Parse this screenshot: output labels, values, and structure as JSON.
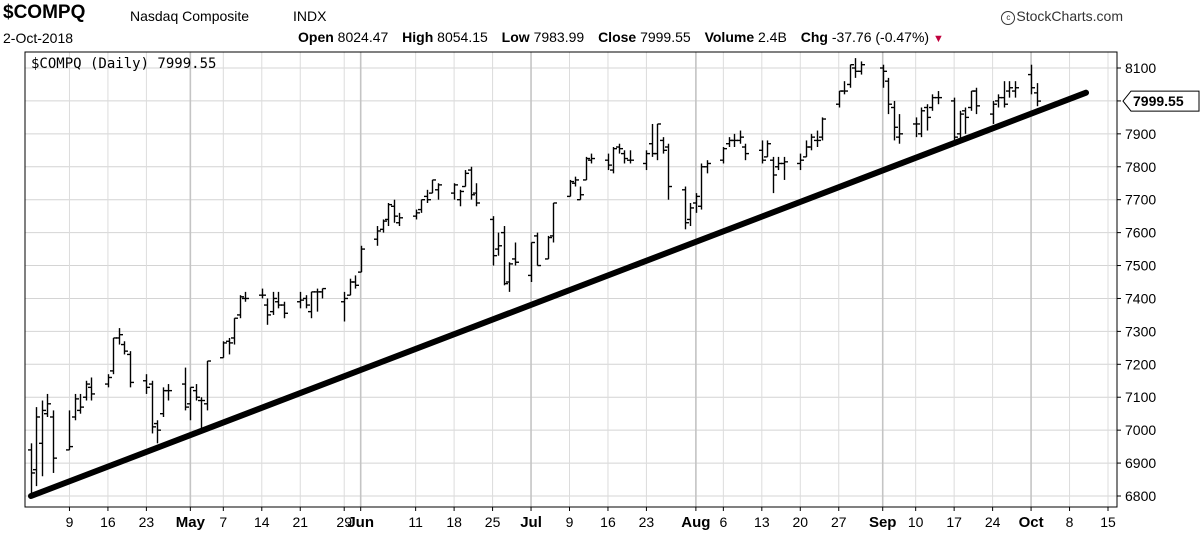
{
  "header": {
    "symbol": "$COMPQ",
    "name": "Nasdaq Composite",
    "exchange": "INDX",
    "brand": "StockCharts.com",
    "date": "2-Oct-2018",
    "open_label": "Open",
    "open": "8024.47",
    "high_label": "High",
    "high": "8054.15",
    "low_label": "Low",
    "low": "7983.99",
    "close_label": "Close",
    "close": "7999.55",
    "volume_label": "Volume",
    "volume": "2.4B",
    "chg_label": "Chg",
    "chg": "-37.76 (-0.47%)"
  },
  "chart_data": {
    "type": "ohlc",
    "legend": "$COMPQ (Daily) 7999.55",
    "last_value": "7999.55",
    "ylim": [
      6760,
      8160
    ],
    "y_ticks": [
      6800,
      6900,
      7000,
      7100,
      7200,
      7300,
      7400,
      7500,
      7600,
      7700,
      7800,
      7900,
      8000,
      8100
    ],
    "y_tick_labels": [
      "6800",
      "6900",
      "7000",
      "7100",
      "7200",
      "7300",
      "7400",
      "7500",
      "7600",
      "7700",
      "7800",
      "7900",
      "",
      "8100"
    ],
    "grid": true,
    "x_ticks": [
      {
        "label": "9",
        "month": false,
        "date": "2018-04-09"
      },
      {
        "label": "16",
        "month": false,
        "date": "2018-04-16"
      },
      {
        "label": "23",
        "month": false,
        "date": "2018-04-23"
      },
      {
        "label": "May",
        "month": true,
        "date": "2018-05-01"
      },
      {
        "label": "7",
        "month": false,
        "date": "2018-05-07"
      },
      {
        "label": "14",
        "month": false,
        "date": "2018-05-14"
      },
      {
        "label": "21",
        "month": false,
        "date": "2018-05-21"
      },
      {
        "label": "29",
        "month": false,
        "date": "2018-05-29"
      },
      {
        "label": "Jun",
        "month": true,
        "date": "2018-06-01"
      },
      {
        "label": "11",
        "month": false,
        "date": "2018-06-11"
      },
      {
        "label": "18",
        "month": false,
        "date": "2018-06-18"
      },
      {
        "label": "25",
        "month": false,
        "date": "2018-06-25"
      },
      {
        "label": "Jul",
        "month": true,
        "date": "2018-07-02"
      },
      {
        "label": "9",
        "month": false,
        "date": "2018-07-09"
      },
      {
        "label": "16",
        "month": false,
        "date": "2018-07-16"
      },
      {
        "label": "23",
        "month": false,
        "date": "2018-07-23"
      },
      {
        "label": "Aug",
        "month": true,
        "date": "2018-08-01"
      },
      {
        "label": "6",
        "month": false,
        "date": "2018-08-06"
      },
      {
        "label": "13",
        "month": false,
        "date": "2018-08-13"
      },
      {
        "label": "20",
        "month": false,
        "date": "2018-08-20"
      },
      {
        "label": "27",
        "month": false,
        "date": "2018-08-27"
      },
      {
        "label": "Sep",
        "month": true,
        "date": "2018-09-04"
      },
      {
        "label": "10",
        "month": false,
        "date": "2018-09-10"
      },
      {
        "label": "17",
        "month": false,
        "date": "2018-09-17"
      },
      {
        "label": "24",
        "month": false,
        "date": "2018-09-24"
      },
      {
        "label": "Oct",
        "month": true,
        "date": "2018-10-01"
      },
      {
        "label": "8",
        "month": false,
        "date": "2018-10-08"
      },
      {
        "label": "15",
        "month": false,
        "date": "2018-10-15"
      }
    ],
    "trendline": [
      {
        "date": "2018-04-02",
        "value": 6800
      },
      {
        "date": "2018-10-11",
        "value": 8025
      }
    ],
    "colors": {
      "bars": "#000000",
      "trendline": "#000000",
      "grid": "#d4d4d4",
      "change_arrow": "#c0003c"
    },
    "bars": [
      {
        "date": "2018-04-02",
        "o": 6940,
        "h": 6960,
        "l": 6800,
        "c": 6870
      },
      {
        "date": "2018-04-03",
        "o": 6880,
        "h": 7070,
        "l": 6830,
        "c": 7040
      },
      {
        "date": "2018-04-04",
        "o": 6960,
        "h": 7090,
        "l": 6860,
        "c": 7060
      },
      {
        "date": "2018-04-05",
        "o": 7050,
        "h": 7110,
        "l": 7040,
        "c": 7080
      },
      {
        "date": "2018-04-06",
        "o": 7040,
        "h": 7060,
        "l": 6870,
        "c": 6915
      },
      {
        "date": "2018-04-09",
        "o": 6940,
        "h": 7060,
        "l": 6940,
        "c": 6950
      },
      {
        "date": "2018-04-10",
        "o": 7040,
        "h": 7110,
        "l": 7030,
        "c": 7095
      },
      {
        "date": "2018-04-11",
        "o": 7060,
        "h": 7110,
        "l": 7050,
        "c": 7070
      },
      {
        "date": "2018-04-12",
        "o": 7100,
        "h": 7150,
        "l": 7090,
        "c": 7140
      },
      {
        "date": "2018-04-13",
        "o": 7130,
        "h": 7160,
        "l": 7090,
        "c": 7110
      },
      {
        "date": "2018-04-16",
        "o": 7140,
        "h": 7170,
        "l": 7130,
        "c": 7160
      },
      {
        "date": "2018-04-17",
        "o": 7180,
        "h": 7280,
        "l": 7170,
        "c": 7280
      },
      {
        "date": "2018-04-18",
        "o": 7280,
        "h": 7310,
        "l": 7260,
        "c": 7290
      },
      {
        "date": "2018-04-19",
        "o": 7260,
        "h": 7270,
        "l": 7230,
        "c": 7240
      },
      {
        "date": "2018-04-20",
        "o": 7230,
        "h": 7240,
        "l": 7130,
        "c": 7145
      },
      {
        "date": "2018-04-23",
        "o": 7150,
        "h": 7170,
        "l": 7110,
        "c": 7130
      },
      {
        "date": "2018-04-24",
        "o": 7140,
        "h": 7150,
        "l": 6990,
        "c": 7010
      },
      {
        "date": "2018-04-25",
        "o": 7020,
        "h": 7030,
        "l": 6960,
        "c": 7000
      },
      {
        "date": "2018-04-26",
        "o": 7050,
        "h": 7130,
        "l": 7040,
        "c": 7120
      },
      {
        "date": "2018-04-27",
        "o": 7120,
        "h": 7140,
        "l": 7090,
        "c": 7120
      },
      {
        "date": "2018-04-30",
        "o": 7140,
        "h": 7190,
        "l": 7060,
        "c": 7070
      },
      {
        "date": "2018-05-01",
        "o": 7080,
        "h": 7130,
        "l": 7030,
        "c": 7130
      },
      {
        "date": "2018-05-02",
        "o": 7120,
        "h": 7140,
        "l": 7090,
        "c": 7100
      },
      {
        "date": "2018-05-03",
        "o": 7090,
        "h": 7100,
        "l": 6990,
        "c": 7090
      },
      {
        "date": "2018-05-04",
        "o": 7080,
        "h": 7210,
        "l": 7060,
        "c": 7210
      },
      {
        "date": "2018-05-07",
        "o": 7220,
        "h": 7270,
        "l": 7220,
        "c": 7265
      },
      {
        "date": "2018-05-08",
        "o": 7270,
        "h": 7280,
        "l": 7230,
        "c": 7265
      },
      {
        "date": "2018-05-09",
        "o": 7280,
        "h": 7340,
        "l": 7260,
        "c": 7340
      },
      {
        "date": "2018-05-10",
        "o": 7350,
        "h": 7410,
        "l": 7340,
        "c": 7405
      },
      {
        "date": "2018-05-11",
        "o": 7400,
        "h": 7420,
        "l": 7390,
        "c": 7400
      },
      {
        "date": "2018-05-14",
        "o": 7410,
        "h": 7430,
        "l": 7400,
        "c": 7410
      },
      {
        "date": "2018-05-15",
        "o": 7380,
        "h": 7400,
        "l": 7320,
        "c": 7350
      },
      {
        "date": "2018-05-16",
        "o": 7360,
        "h": 7420,
        "l": 7350,
        "c": 7400
      },
      {
        "date": "2018-05-17",
        "o": 7390,
        "h": 7420,
        "l": 7370,
        "c": 7380
      },
      {
        "date": "2018-05-18",
        "o": 7380,
        "h": 7390,
        "l": 7340,
        "c": 7355
      },
      {
        "date": "2018-05-21",
        "o": 7390,
        "h": 7420,
        "l": 7370,
        "c": 7395
      },
      {
        "date": "2018-05-22",
        "o": 7400,
        "h": 7410,
        "l": 7370,
        "c": 7380
      },
      {
        "date": "2018-05-23",
        "o": 7360,
        "h": 7420,
        "l": 7340,
        "c": 7420
      },
      {
        "date": "2018-05-24",
        "o": 7420,
        "h": 7430,
        "l": 7360,
        "c": 7420
      },
      {
        "date": "2018-05-25",
        "o": 7420,
        "h": 7430,
        "l": 7400,
        "c": 7430
      },
      {
        "date": "2018-05-29",
        "o": 7390,
        "h": 7420,
        "l": 7330,
        "c": 7400
      },
      {
        "date": "2018-05-30",
        "o": 7410,
        "h": 7460,
        "l": 7410,
        "c": 7450
      },
      {
        "date": "2018-05-31",
        "o": 7450,
        "h": 7470,
        "l": 7430,
        "c": 7440
      },
      {
        "date": "2018-06-01",
        "o": 7480,
        "h": 7560,
        "l": 7480,
        "c": 7550
      },
      {
        "date": "2018-06-04",
        "o": 7580,
        "h": 7620,
        "l": 7560,
        "c": 7605
      },
      {
        "date": "2018-06-05",
        "o": 7610,
        "h": 7640,
        "l": 7600,
        "c": 7635
      },
      {
        "date": "2018-06-06",
        "o": 7640,
        "h": 7690,
        "l": 7620,
        "c": 7685
      },
      {
        "date": "2018-06-07",
        "o": 7680,
        "h": 7700,
        "l": 7630,
        "c": 7650
      },
      {
        "date": "2018-06-08",
        "o": 7630,
        "h": 7660,
        "l": 7620,
        "c": 7645
      },
      {
        "date": "2018-06-11",
        "o": 7650,
        "h": 7670,
        "l": 7640,
        "c": 7660
      },
      {
        "date": "2018-06-12",
        "o": 7670,
        "h": 7700,
        "l": 7660,
        "c": 7700
      },
      {
        "date": "2018-06-13",
        "o": 7710,
        "h": 7730,
        "l": 7690,
        "c": 7700
      },
      {
        "date": "2018-06-14",
        "o": 7720,
        "h": 7760,
        "l": 7720,
        "c": 7760
      },
      {
        "date": "2018-06-15",
        "o": 7730,
        "h": 7750,
        "l": 7700,
        "c": 7745
      },
      {
        "date": "2018-06-18",
        "o": 7720,
        "h": 7750,
        "l": 7700,
        "c": 7745
      },
      {
        "date": "2018-06-19",
        "o": 7700,
        "h": 7730,
        "l": 7680,
        "c": 7725
      },
      {
        "date": "2018-06-20",
        "o": 7740,
        "h": 7790,
        "l": 7740,
        "c": 7780
      },
      {
        "date": "2018-06-21",
        "o": 7790,
        "h": 7800,
        "l": 7700,
        "c": 7715
      },
      {
        "date": "2018-06-22",
        "o": 7720,
        "h": 7750,
        "l": 7680,
        "c": 7690
      },
      {
        "date": "2018-06-25",
        "o": 7640,
        "h": 7650,
        "l": 7500,
        "c": 7530
      },
      {
        "date": "2018-06-26",
        "o": 7550,
        "h": 7600,
        "l": 7530,
        "c": 7560
      },
      {
        "date": "2018-06-27",
        "o": 7600,
        "h": 7620,
        "l": 7440,
        "c": 7445
      },
      {
        "date": "2018-06-28",
        "o": 7450,
        "h": 7510,
        "l": 7420,
        "c": 7505
      },
      {
        "date": "2018-06-29",
        "o": 7520,
        "h": 7570,
        "l": 7500,
        "c": 7510
      },
      {
        "date": "2018-07-02",
        "o": 7470,
        "h": 7570,
        "l": 7450,
        "c": 7570
      },
      {
        "date": "2018-07-03",
        "o": 7590,
        "h": 7600,
        "l": 7500,
        "c": 7500
      },
      {
        "date": "2018-07-05",
        "o": 7520,
        "h": 7590,
        "l": 7520,
        "c": 7585
      },
      {
        "date": "2018-07-06",
        "o": 7590,
        "h": 7690,
        "l": 7570,
        "c": 7690
      },
      {
        "date": "2018-07-09",
        "o": 7710,
        "h": 7760,
        "l": 7710,
        "c": 7755
      },
      {
        "date": "2018-07-10",
        "o": 7750,
        "h": 7770,
        "l": 7740,
        "c": 7760
      },
      {
        "date": "2018-07-11",
        "o": 7700,
        "h": 7740,
        "l": 7700,
        "c": 7715
      },
      {
        "date": "2018-07-12",
        "o": 7760,
        "h": 7830,
        "l": 7760,
        "c": 7825
      },
      {
        "date": "2018-07-13",
        "o": 7820,
        "h": 7840,
        "l": 7810,
        "c": 7825
      },
      {
        "date": "2018-07-16",
        "o": 7820,
        "h": 7840,
        "l": 7790,
        "c": 7805
      },
      {
        "date": "2018-07-17",
        "o": 7790,
        "h": 7860,
        "l": 7780,
        "c": 7855
      },
      {
        "date": "2018-07-18",
        "o": 7860,
        "h": 7870,
        "l": 7840,
        "c": 7855
      },
      {
        "date": "2018-07-19",
        "o": 7840,
        "h": 7850,
        "l": 7810,
        "c": 7825
      },
      {
        "date": "2018-07-20",
        "o": 7820,
        "h": 7850,
        "l": 7810,
        "c": 7820
      },
      {
        "date": "2018-07-23",
        "o": 7810,
        "h": 7850,
        "l": 7790,
        "c": 7840
      },
      {
        "date": "2018-07-24",
        "o": 7870,
        "h": 7930,
        "l": 7830,
        "c": 7840
      },
      {
        "date": "2018-07-25",
        "o": 7840,
        "h": 7930,
        "l": 7820,
        "c": 7930
      },
      {
        "date": "2018-07-26",
        "o": 7880,
        "h": 7890,
        "l": 7840,
        "c": 7850
      },
      {
        "date": "2018-07-27",
        "o": 7860,
        "h": 7870,
        "l": 7700,
        "c": 7740
      },
      {
        "date": "2018-07-30",
        "o": 7730,
        "h": 7740,
        "l": 7610,
        "c": 7630
      },
      {
        "date": "2018-07-31",
        "o": 7640,
        "h": 7690,
        "l": 7620,
        "c": 7675
      },
      {
        "date": "2018-08-01",
        "o": 7690,
        "h": 7720,
        "l": 7660,
        "c": 7710
      },
      {
        "date": "2018-08-02",
        "o": 7680,
        "h": 7810,
        "l": 7670,
        "c": 7800
      },
      {
        "date": "2018-08-03",
        "o": 7800,
        "h": 7820,
        "l": 7780,
        "c": 7810
      },
      {
        "date": "2018-08-06",
        "o": 7820,
        "h": 7860,
        "l": 7810,
        "c": 7855
      },
      {
        "date": "2018-08-07",
        "o": 7870,
        "h": 7890,
        "l": 7860,
        "c": 7880
      },
      {
        "date": "2018-08-08",
        "o": 7880,
        "h": 7900,
        "l": 7860,
        "c": 7880
      },
      {
        "date": "2018-08-09",
        "o": 7880,
        "h": 7910,
        "l": 7870,
        "c": 7890
      },
      {
        "date": "2018-08-10",
        "o": 7860,
        "h": 7870,
        "l": 7820,
        "c": 7840
      },
      {
        "date": "2018-08-13",
        "o": 7850,
        "h": 7880,
        "l": 7810,
        "c": 7820
      },
      {
        "date": "2018-08-14",
        "o": 7830,
        "h": 7880,
        "l": 7830,
        "c": 7870
      },
      {
        "date": "2018-08-15",
        "o": 7820,
        "h": 7830,
        "l": 7720,
        "c": 7775
      },
      {
        "date": "2018-08-16",
        "o": 7800,
        "h": 7830,
        "l": 7790,
        "c": 7810
      },
      {
        "date": "2018-08-17",
        "o": 7810,
        "h": 7830,
        "l": 7760,
        "c": 7815
      },
      {
        "date": "2018-08-20",
        "o": 7810,
        "h": 7840,
        "l": 7790,
        "c": 7820
      },
      {
        "date": "2018-08-21",
        "o": 7830,
        "h": 7880,
        "l": 7830,
        "c": 7860
      },
      {
        "date": "2018-08-22",
        "o": 7860,
        "h": 7900,
        "l": 7850,
        "c": 7890
      },
      {
        "date": "2018-08-23",
        "o": 7880,
        "h": 7910,
        "l": 7860,
        "c": 7880
      },
      {
        "date": "2018-08-24",
        "o": 7890,
        "h": 7950,
        "l": 7880,
        "c": 7945
      },
      {
        "date": "2018-08-27",
        "o": 7990,
        "h": 8030,
        "l": 7980,
        "c": 8030
      },
      {
        "date": "2018-08-28",
        "o": 8030,
        "h": 8060,
        "l": 8020,
        "c": 8030
      },
      {
        "date": "2018-08-29",
        "o": 8050,
        "h": 8110,
        "l": 8040,
        "c": 8110
      },
      {
        "date": "2018-08-30",
        "o": 8100,
        "h": 8130,
        "l": 8070,
        "c": 8090
      },
      {
        "date": "2018-08-31",
        "o": 8090,
        "h": 8120,
        "l": 8080,
        "c": 8110
      },
      {
        "date": "2018-09-04",
        "o": 8100,
        "h": 8110,
        "l": 8040,
        "c": 8090
      },
      {
        "date": "2018-09-05",
        "o": 8060,
        "h": 8070,
        "l": 7960,
        "c": 7990
      },
      {
        "date": "2018-09-06",
        "o": 7980,
        "h": 8000,
        "l": 7880,
        "c": 7920
      },
      {
        "date": "2018-09-07",
        "o": 7890,
        "h": 7960,
        "l": 7870,
        "c": 7900
      },
      {
        "date": "2018-09-10",
        "o": 7930,
        "h": 7950,
        "l": 7890,
        "c": 7930
      },
      {
        "date": "2018-09-11",
        "o": 7900,
        "h": 7980,
        "l": 7890,
        "c": 7970
      },
      {
        "date": "2018-09-12",
        "o": 7980,
        "h": 7990,
        "l": 7910,
        "c": 7950
      },
      {
        "date": "2018-09-13",
        "o": 7980,
        "h": 8020,
        "l": 7970,
        "c": 8010
      },
      {
        "date": "2018-09-14",
        "o": 8010,
        "h": 8030,
        "l": 7990,
        "c": 8010
      },
      {
        "date": "2018-09-17",
        "o": 8000,
        "h": 8010,
        "l": 7880,
        "c": 7890
      },
      {
        "date": "2018-09-18",
        "o": 7900,
        "h": 7970,
        "l": 7880,
        "c": 7960
      },
      {
        "date": "2018-09-19",
        "o": 7970,
        "h": 7980,
        "l": 7900,
        "c": 7950
      },
      {
        "date": "2018-09-20",
        "o": 7980,
        "h": 8030,
        "l": 7970,
        "c": 8030
      },
      {
        "date": "2018-09-21",
        "o": 8030,
        "h": 8040,
        "l": 7960,
        "c": 7985
      },
      {
        "date": "2018-09-24",
        "o": 7960,
        "h": 8000,
        "l": 7930,
        "c": 7990
      },
      {
        "date": "2018-09-25",
        "o": 8000,
        "h": 8020,
        "l": 7980,
        "c": 8010
      },
      {
        "date": "2018-09-26",
        "o": 8010,
        "h": 8060,
        "l": 7980,
        "c": 7990
      },
      {
        "date": "2018-09-27",
        "o": 8030,
        "h": 8060,
        "l": 8010,
        "c": 8040
      },
      {
        "date": "2018-09-28",
        "o": 8030,
        "h": 8060,
        "l": 8010,
        "c": 8040
      },
      {
        "date": "2018-10-01",
        "o": 8080,
        "h": 8110,
        "l": 8020,
        "c": 8040
      },
      {
        "date": "2018-10-02",
        "o": 8024.47,
        "h": 8054.15,
        "l": 7983.99,
        "c": 7999.55
      }
    ]
  }
}
